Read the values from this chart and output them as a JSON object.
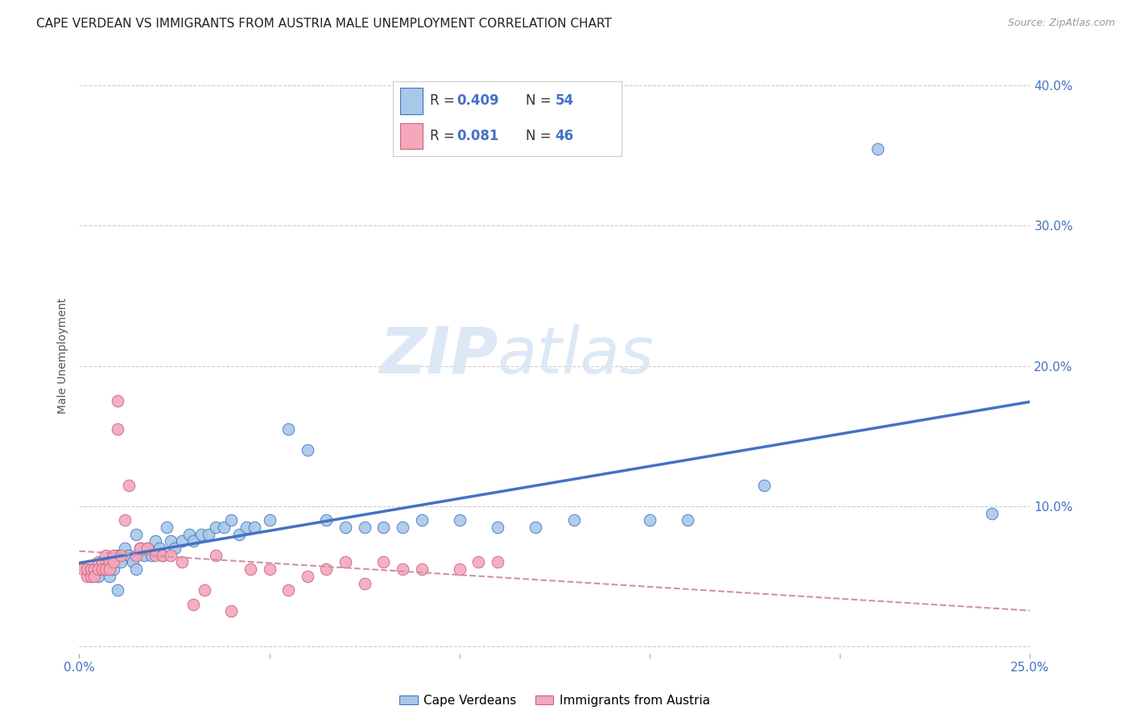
{
  "title": "CAPE VERDEAN VS IMMIGRANTS FROM AUSTRIA MALE UNEMPLOYMENT CORRELATION CHART",
  "source": "Source: ZipAtlas.com",
  "ylabel": "Male Unemployment",
  "xlim": [
    0.0,
    0.25
  ],
  "ylim": [
    -0.005,
    0.42
  ],
  "xticks": [
    0.0,
    0.05,
    0.1,
    0.15,
    0.2,
    0.25
  ],
  "xtick_labels": [
    "0.0%",
    "",
    "",
    "",
    "",
    "25.0%"
  ],
  "yticks_right": [
    0.0,
    0.1,
    0.2,
    0.3,
    0.4
  ],
  "ytick_labels_right": [
    "",
    "10.0%",
    "20.0%",
    "30.0%",
    "40.0%"
  ],
  "grid_color": "#cccccc",
  "background_color": "#ffffff",
  "watermark_zip": "ZIP",
  "watermark_atlas": "atlas",
  "color_blue": "#a8c8e8",
  "color_pink": "#f4a8bc",
  "line_color_blue": "#4472c4",
  "line_color_pink": "#e0a0b8",
  "title_fontsize": 11,
  "axis_label_fontsize": 10,
  "tick_fontsize": 11,
  "scatter_blue_x": [
    0.004,
    0.005,
    0.006,
    0.007,
    0.008,
    0.008,
    0.009,
    0.01,
    0.01,
    0.011,
    0.012,
    0.013,
    0.014,
    0.015,
    0.015,
    0.016,
    0.017,
    0.018,
    0.019,
    0.02,
    0.021,
    0.022,
    0.023,
    0.024,
    0.025,
    0.027,
    0.029,
    0.03,
    0.032,
    0.034,
    0.036,
    0.038,
    0.04,
    0.042,
    0.044,
    0.046,
    0.05,
    0.055,
    0.06,
    0.065,
    0.07,
    0.075,
    0.08,
    0.085,
    0.09,
    0.1,
    0.11,
    0.12,
    0.13,
    0.15,
    0.16,
    0.18,
    0.21,
    0.24
  ],
  "scatter_blue_y": [
    0.055,
    0.05,
    0.06,
    0.055,
    0.06,
    0.05,
    0.055,
    0.065,
    0.04,
    0.06,
    0.07,
    0.065,
    0.06,
    0.08,
    0.055,
    0.07,
    0.065,
    0.07,
    0.065,
    0.075,
    0.07,
    0.065,
    0.085,
    0.075,
    0.07,
    0.075,
    0.08,
    0.075,
    0.08,
    0.08,
    0.085,
    0.085,
    0.09,
    0.08,
    0.085,
    0.085,
    0.09,
    0.155,
    0.14,
    0.09,
    0.085,
    0.085,
    0.085,
    0.085,
    0.09,
    0.09,
    0.085,
    0.085,
    0.09,
    0.09,
    0.09,
    0.115,
    0.355,
    0.095
  ],
  "scatter_pink_x": [
    0.001,
    0.002,
    0.002,
    0.003,
    0.003,
    0.004,
    0.004,
    0.005,
    0.005,
    0.006,
    0.006,
    0.007,
    0.007,
    0.008,
    0.008,
    0.009,
    0.009,
    0.01,
    0.01,
    0.011,
    0.012,
    0.013,
    0.015,
    0.016,
    0.018,
    0.02,
    0.022,
    0.024,
    0.027,
    0.03,
    0.033,
    0.036,
    0.04,
    0.045,
    0.05,
    0.055,
    0.06,
    0.065,
    0.07,
    0.075,
    0.08,
    0.085,
    0.09,
    0.1,
    0.105,
    0.11
  ],
  "scatter_pink_y": [
    0.055,
    0.05,
    0.055,
    0.05,
    0.055,
    0.055,
    0.05,
    0.06,
    0.055,
    0.06,
    0.055,
    0.065,
    0.055,
    0.06,
    0.055,
    0.065,
    0.06,
    0.175,
    0.155,
    0.065,
    0.09,
    0.115,
    0.065,
    0.07,
    0.07,
    0.065,
    0.065,
    0.065,
    0.06,
    0.03,
    0.04,
    0.065,
    0.025,
    0.055,
    0.055,
    0.04,
    0.05,
    0.055,
    0.06,
    0.045,
    0.06,
    0.055,
    0.055,
    0.055,
    0.06,
    0.06
  ],
  "legend_label_blue": "Cape Verdeans",
  "legend_label_pink": "Immigrants from Austria",
  "blue_R": "0.409",
  "blue_N": "54",
  "pink_R": "0.081",
  "pink_N": "46"
}
